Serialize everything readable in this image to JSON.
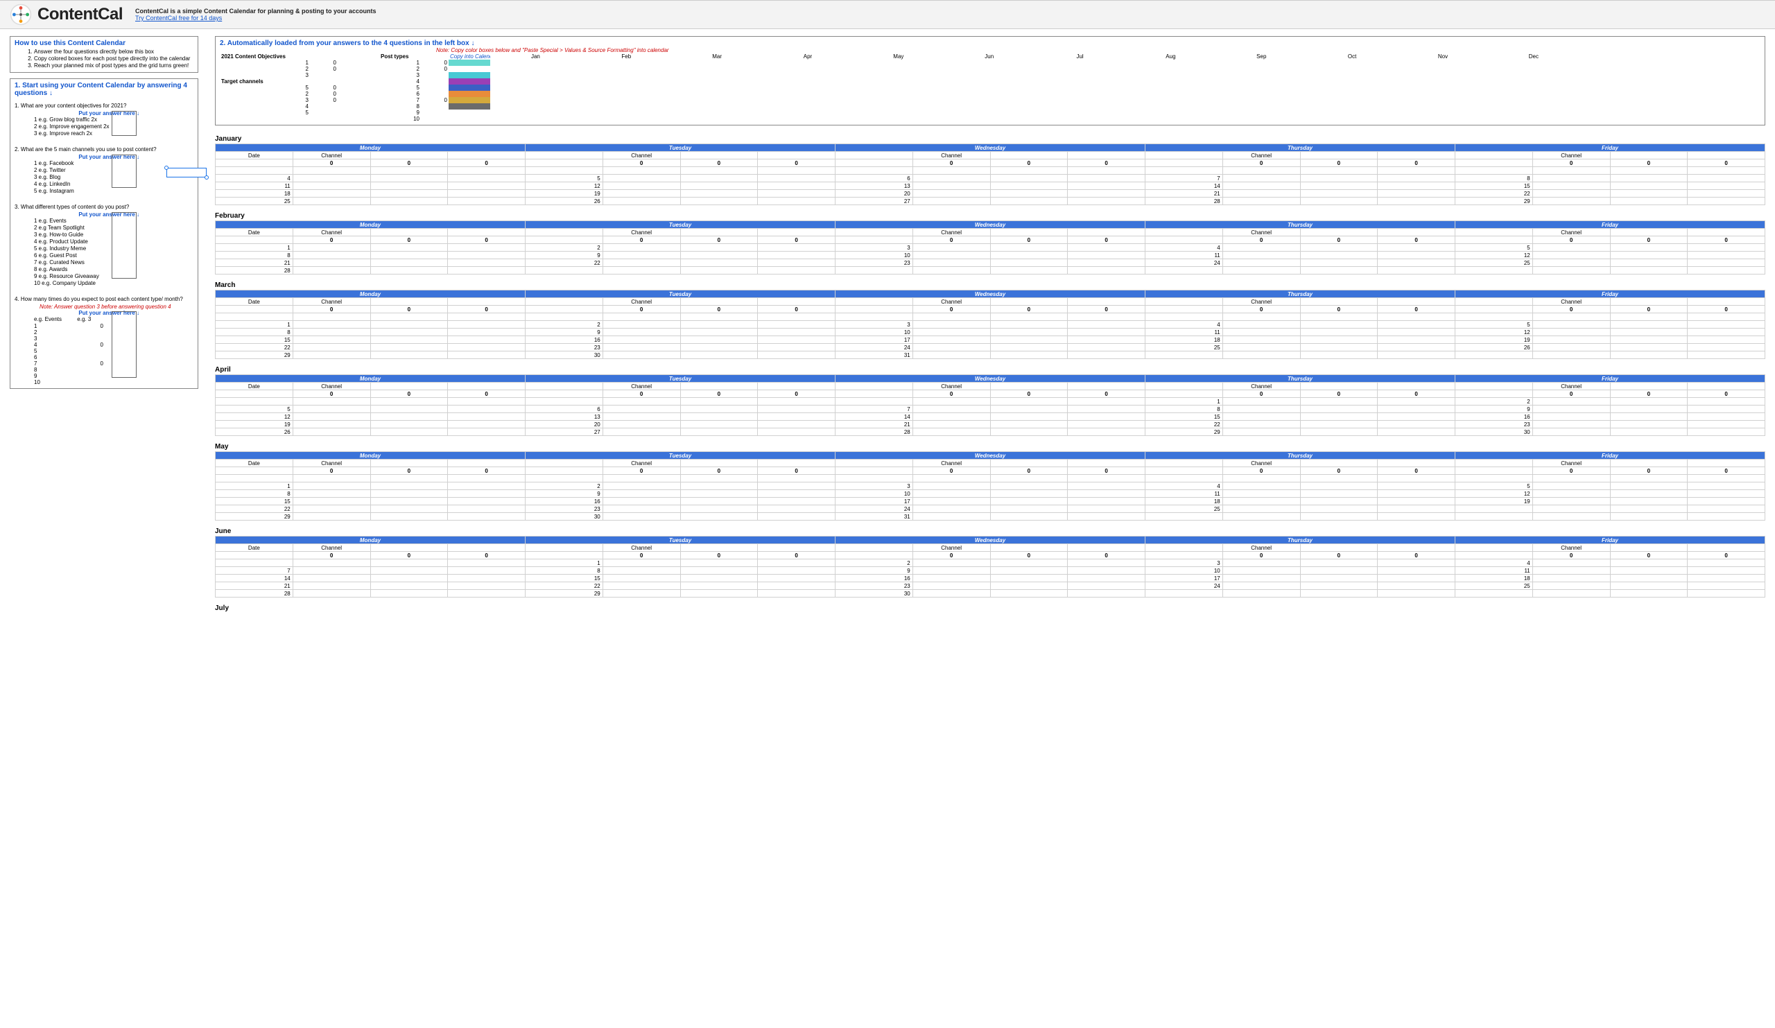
{
  "header": {
    "brand": "ContentCal",
    "tagline": "ContentCal is a simple Content Calendar for planning & posting to your accounts",
    "cta": "Try ContentCal free for 14 days"
  },
  "howto": {
    "title": "How to use this Content Calendar",
    "steps": [
      "Answer the four questions directly below this box",
      "Copy colored boxes for each post type directly into the calendar",
      "Reach your planned mix of post types and the grid turns green!"
    ]
  },
  "section1": {
    "title": "1. Start using your Content Calendar by answering 4 questions ↓",
    "answer_label": "Put your answer here ↓",
    "q1": {
      "text": "1. What are your content objectives for 2021?",
      "examples": [
        "e.g. Grow blog traffic 2x",
        "e.g. Improve engagement 2x",
        "e.g. Improve reach 2x"
      ]
    },
    "q2": {
      "text": "2. What are the 5 main channels you use to post content?",
      "examples": [
        "e.g. Facebook",
        "e.g. Twitter",
        "e.g. Blog",
        "e.g. LinkedIn",
        "e.g. Instagram"
      ]
    },
    "q3": {
      "text": "3. What different types of content do you post?",
      "examples": [
        "e.g. Events",
        "e.g Team Spotlight",
        "e.g. How-to Guide",
        "e.g. Product Update",
        "e.g. Industry Meme",
        "e.g. Guest Post",
        "e.g. Curated News",
        "e.g. Awards",
        "e.g. Resource Giveaway",
        "e.g. Company Update"
      ]
    },
    "q4": {
      "text": "4. How many times do you expect to post each content type/ month?",
      "note": "Note: Answer question 3 before answering question 4",
      "eg_label": "e.g. Events",
      "eg_val": "e.g. 3",
      "rows": [
        "1",
        "2",
        "3",
        "4",
        "5",
        "6",
        "7",
        "8",
        "9",
        "10"
      ],
      "zeros": {
        "1": "0",
        "4": "0",
        "7": "0"
      }
    }
  },
  "section2": {
    "title": "2. Automatically loaded from your answers to the 4 questions in the left box ↓",
    "note": "Note: Copy color boxes below and \"Paste Special > Values & Source Formatting\" into calendar",
    "objectives_label": "2021 Content Objectives",
    "posttypes_label": "Post types",
    "copy_label": "Copy into Calendar ↓",
    "channels_label": "Target channels",
    "months": [
      "Jan",
      "Feb",
      "Mar",
      "Apr",
      "May",
      "Jun",
      "Jul",
      "Aug",
      "Sep",
      "Oct",
      "Nov",
      "Dec"
    ],
    "obj_rows": [
      [
        "1",
        "0"
      ],
      [
        "2",
        "0"
      ],
      [
        "3",
        ""
      ]
    ],
    "ch_rows": [
      [
        "1",
        "0"
      ],
      [
        "2",
        "0"
      ],
      [
        "3",
        "0"
      ],
      [
        "4",
        ""
      ],
      [
        "5",
        ""
      ]
    ],
    "pt_rows": [
      [
        "1",
        "0"
      ],
      [
        "2",
        "0"
      ],
      [
        "3",
        ""
      ],
      [
        "4",
        ""
      ],
      [
        "5",
        ""
      ],
      [
        "6",
        ""
      ],
      [
        "7",
        "0"
      ],
      [
        "8",
        ""
      ],
      [
        "9",
        ""
      ],
      [
        "10",
        ""
      ]
    ],
    "swatches": [
      "#66d9d0",
      "#ffffff",
      "#48c9d4",
      "#9b3fb5",
      "#3b5fc4",
      "#e88c3a",
      "#d4a93c",
      "#6b6b6b",
      "#ffffff",
      "#ffffff"
    ]
  },
  "calendar": {
    "days": [
      "Monday",
      "Tuesday",
      "Wednesday",
      "Thursday",
      "Friday"
    ],
    "sub": [
      "Date",
      "Channel",
      "",
      "",
      "",
      "Channel",
      "",
      "",
      "",
      "Channel",
      "",
      "",
      "",
      "Channel",
      "",
      "",
      "",
      "Channel",
      "",
      ""
    ],
    "zero_row": [
      "",
      "0",
      "0",
      "0",
      "",
      "0",
      "0",
      "0",
      "",
      "0",
      "0",
      "0",
      "",
      "0",
      "0",
      "0",
      "",
      "0",
      "0",
      "0"
    ],
    "months": [
      {
        "name": "January",
        "weeks": [
          [
            "",
            "",
            "",
            "",
            "",
            "",
            "",
            "",
            "",
            "",
            "",
            "",
            "",
            "",
            "",
            "",
            "",
            "",
            "",
            ""
          ],
          [
            "4",
            "",
            "",
            "",
            "5",
            "",
            "",
            "",
            "6",
            "",
            "",
            "",
            "7",
            "",
            "",
            "",
            "8",
            "",
            "",
            ""
          ],
          [
            "11",
            "",
            "",
            "",
            "12",
            "",
            "",
            "",
            "13",
            "",
            "",
            "",
            "14",
            "",
            "",
            "",
            "15",
            "",
            "",
            ""
          ],
          [
            "18",
            "",
            "",
            "",
            "19",
            "",
            "",
            "",
            "20",
            "",
            "",
            "",
            "21",
            "",
            "",
            "",
            "22",
            "",
            "",
            ""
          ],
          [
            "25",
            "",
            "",
            "",
            "26",
            "",
            "",
            "",
            "27",
            "",
            "",
            "",
            "28",
            "",
            "",
            "",
            "29",
            "",
            "",
            ""
          ]
        ]
      },
      {
        "name": "February",
        "weeks": [
          [
            "1",
            "",
            "",
            "",
            "2",
            "",
            "",
            "",
            "3",
            "",
            "",
            "",
            "4",
            "",
            "",
            "",
            "5",
            "",
            "",
            ""
          ],
          [
            "8",
            "",
            "",
            "",
            "9",
            "",
            "",
            "",
            "10",
            "",
            "",
            "",
            "11",
            "",
            "",
            "",
            "12",
            "",
            "",
            ""
          ],
          [
            "21",
            "",
            "",
            "",
            "22",
            "",
            "",
            "",
            "23",
            "",
            "",
            "",
            "24",
            "",
            "",
            "",
            "25",
            "",
            "",
            ""
          ],
          [
            "28",
            "",
            "",
            "",
            "",
            "",
            "",
            "",
            "",
            "",
            "",
            "",
            "",
            "",
            "",
            "",
            "",
            "",
            "",
            ""
          ]
        ]
      },
      {
        "name": "March",
        "weeks": [
          [
            "",
            "",
            "",
            "",
            "",
            "",
            "",
            "",
            "",
            "",
            "",
            "",
            "",
            "",
            "",
            "",
            "",
            "",
            "",
            ""
          ],
          [
            "1",
            "",
            "",
            "",
            "2",
            "",
            "",
            "",
            "3",
            "",
            "",
            "",
            "4",
            "",
            "",
            "",
            "5",
            "",
            "",
            ""
          ],
          [
            "8",
            "",
            "",
            "",
            "9",
            "",
            "",
            "",
            "10",
            "",
            "",
            "",
            "11",
            "",
            "",
            "",
            "12",
            "",
            "",
            ""
          ],
          [
            "15",
            "",
            "",
            "",
            "16",
            "",
            "",
            "",
            "17",
            "",
            "",
            "",
            "18",
            "",
            "",
            "",
            "19",
            "",
            "",
            ""
          ],
          [
            "22",
            "",
            "",
            "",
            "23",
            "",
            "",
            "",
            "24",
            "",
            "",
            "",
            "25",
            "",
            "",
            "",
            "26",
            "",
            "",
            ""
          ],
          [
            "29",
            "",
            "",
            "",
            "30",
            "",
            "",
            "",
            "31",
            "",
            "",
            "",
            "",
            "",
            "",
            "",
            "",
            "",
            "",
            ""
          ]
        ]
      },
      {
        "name": "April",
        "weeks": [
          [
            "",
            "",
            "",
            "",
            "",
            "",
            "",
            "",
            "",
            "",
            "",
            "",
            "1",
            "",
            "",
            "",
            "2",
            "",
            "",
            ""
          ],
          [
            "5",
            "",
            "",
            "",
            "6",
            "",
            "",
            "",
            "7",
            "",
            "",
            "",
            "8",
            "",
            "",
            "",
            "9",
            "",
            "",
            ""
          ],
          [
            "12",
            "",
            "",
            "",
            "13",
            "",
            "",
            "",
            "14",
            "",
            "",
            "",
            "15",
            "",
            "",
            "",
            "16",
            "",
            "",
            ""
          ],
          [
            "19",
            "",
            "",
            "",
            "20",
            "",
            "",
            "",
            "21",
            "",
            "",
            "",
            "22",
            "",
            "",
            "",
            "23",
            "",
            "",
            ""
          ],
          [
            "26",
            "",
            "",
            "",
            "27",
            "",
            "",
            "",
            "28",
            "",
            "",
            "",
            "29",
            "",
            "",
            "",
            "30",
            "",
            "",
            ""
          ]
        ]
      },
      {
        "name": "May",
        "weeks": [
          [
            "",
            "",
            "",
            "",
            "",
            "",
            "",
            "",
            "",
            "",
            "",
            "",
            "",
            "",
            "",
            "",
            "",
            "",
            "",
            ""
          ],
          [
            "1",
            "",
            "",
            "",
            "2",
            "",
            "",
            "",
            "3",
            "",
            "",
            "",
            "4",
            "",
            "",
            "",
            "5",
            "",
            "",
            ""
          ],
          [
            "8",
            "",
            "",
            "",
            "9",
            "",
            "",
            "",
            "10",
            "",
            "",
            "",
            "11",
            "",
            "",
            "",
            "12",
            "",
            "",
            ""
          ],
          [
            "15",
            "",
            "",
            "",
            "16",
            "",
            "",
            "",
            "17",
            "",
            "",
            "",
            "18",
            "",
            "",
            "",
            "19",
            "",
            "",
            ""
          ],
          [
            "22",
            "",
            "",
            "",
            "23",
            "",
            "",
            "",
            "24",
            "",
            "",
            "",
            "25",
            "",
            "",
            "",
            "",
            "",
            "",
            ""
          ],
          [
            "29",
            "",
            "",
            "",
            "30",
            "",
            "",
            "",
            "31",
            "",
            "",
            "",
            "",
            "",
            "",
            "",
            "",
            "",
            "",
            ""
          ]
        ]
      },
      {
        "name": "June",
        "weeks": [
          [
            "",
            "",
            "",
            "",
            "1",
            "",
            "",
            "",
            "2",
            "",
            "",
            "",
            "3",
            "",
            "",
            "",
            "4",
            "",
            "",
            ""
          ],
          [
            "7",
            "",
            "",
            "",
            "8",
            "",
            "",
            "",
            "9",
            "",
            "",
            "",
            "10",
            "",
            "",
            "",
            "11",
            "",
            "",
            ""
          ],
          [
            "14",
            "",
            "",
            "",
            "15",
            "",
            "",
            "",
            "16",
            "",
            "",
            "",
            "17",
            "",
            "",
            "",
            "18",
            "",
            "",
            ""
          ],
          [
            "21",
            "",
            "",
            "",
            "22",
            "",
            "",
            "",
            "23",
            "",
            "",
            "",
            "24",
            "",
            "",
            "",
            "25",
            "",
            "",
            ""
          ],
          [
            "28",
            "",
            "",
            "",
            "29",
            "",
            "",
            "",
            "30",
            "",
            "",
            "",
            "",
            "",
            "",
            "",
            "",
            "",
            "",
            ""
          ]
        ]
      }
    ],
    "next_month": "July"
  },
  "colors": {
    "blue_header": "#3b73d9",
    "link": "#1155cc",
    "red": "#cc0000"
  }
}
